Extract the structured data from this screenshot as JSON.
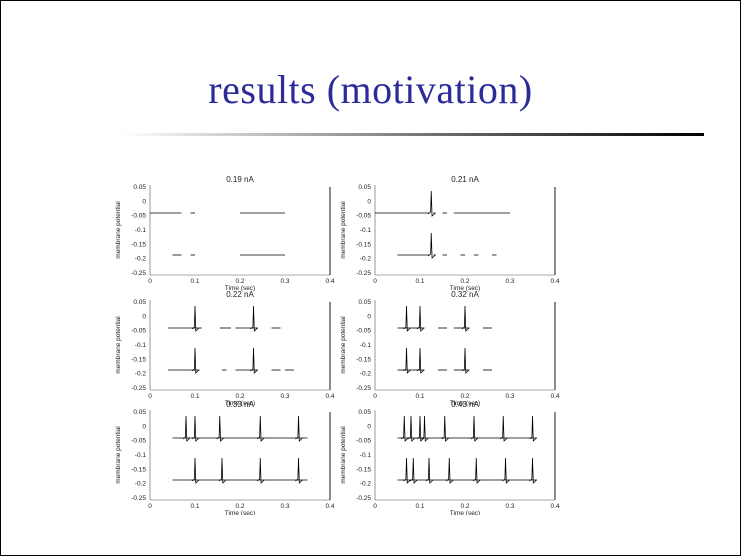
{
  "slide": {
    "title": "results (motivation)",
    "title_color": "#2b2b9a",
    "rule_color": "#000000"
  },
  "chart_data": [
    {
      "type": "line",
      "title": "0.19 nA",
      "xlabel": "Time (sec)",
      "ylabel": "membrane potential",
      "xlim": [
        0,
        0.4
      ],
      "yticks": [
        "0.05",
        "0",
        "-0.05",
        "-0.1",
        "-0.15",
        "-0.2",
        "-0.25"
      ],
      "xticks": [
        "0",
        "0.1",
        "0.2",
        "0.3",
        "0.4"
      ],
      "series": [
        {
          "spikes": [],
          "segments": [
            [
              0,
              0.07
            ],
            [
              0.09,
              0.1
            ],
            [
              0.2,
              0.3
            ]
          ]
        },
        {
          "spikes": [],
          "segments": [
            [
              0.05,
              0.07
            ],
            [
              0.09,
              0.1
            ],
            [
              0.2,
              0.3
            ]
          ]
        }
      ]
    },
    {
      "type": "line",
      "title": "0.21 nA",
      "xlabel": "Time (sec)",
      "ylabel": "membrane potential",
      "xlim": [
        0,
        0.4
      ],
      "yticks": [
        "0.05",
        "0",
        "-0.05",
        "-0.1",
        "-0.15",
        "-0.2",
        "-0.25"
      ],
      "xticks": [
        "0",
        "0.1",
        "0.2",
        "0.3",
        "0.4"
      ],
      "series": [
        {
          "spikes": [
            0.125
          ],
          "segments": [
            [
              0,
              0.12
            ],
            [
              0.13,
              0.135
            ],
            [
              0.15,
              0.16
            ],
            [
              0.175,
              0.3
            ]
          ]
        },
        {
          "spikes": [
            0.125
          ],
          "segments": [
            [
              0.05,
              0.12
            ],
            [
              0.13,
              0.135
            ],
            [
              0.15,
              0.16
            ],
            [
              0.19,
              0.2
            ],
            [
              0.22,
              0.23
            ],
            [
              0.26,
              0.27
            ]
          ]
        }
      ]
    },
    {
      "type": "line",
      "title": "0.22 nA",
      "xlabel": "Time (sec)",
      "ylabel": "membrane potential",
      "xlim": [
        0,
        0.4
      ],
      "yticks": [
        "0.05",
        "0",
        "-0.05",
        "-0.1",
        "-0.15",
        "-0.2",
        "-0.25"
      ],
      "xticks": [
        "0",
        "0.1",
        "0.2",
        "0.3",
        "0.4"
      ],
      "series": [
        {
          "spikes": [
            0.1,
            0.23
          ],
          "segments": [
            [
              0.04,
              0.1
            ],
            [
              0.1,
              0.115
            ],
            [
              0.155,
              0.18
            ],
            [
              0.19,
              0.23
            ],
            [
              0.23,
              0.24
            ],
            [
              0.27,
              0.29
            ]
          ]
        },
        {
          "spikes": [
            0.1,
            0.23
          ],
          "segments": [
            [
              0.04,
              0.1
            ],
            [
              0.1,
              0.11
            ],
            [
              0.16,
              0.17
            ],
            [
              0.19,
              0.23
            ],
            [
              0.23,
              0.24
            ],
            [
              0.27,
              0.29
            ],
            [
              0.3,
              0.32
            ]
          ]
        }
      ]
    },
    {
      "type": "line",
      "title": "0.32 nA",
      "xlabel": "Time (sec)",
      "ylabel": "membrane potential",
      "xlim": [
        0,
        0.4
      ],
      "yticks": [
        "0.05",
        "0",
        "-0.05",
        "-0.1",
        "-0.15",
        "-0.2",
        "-0.25"
      ],
      "xticks": [
        "0",
        "0.1",
        "0.2",
        "0.3",
        "0.4"
      ],
      "series": [
        {
          "spikes": [
            0.07,
            0.1,
            0.2
          ],
          "segments": [
            [
              0.05,
              0.07
            ],
            [
              0.07,
              0.1
            ],
            [
              0.1,
              0.11
            ],
            [
              0.14,
              0.16
            ],
            [
              0.175,
              0.2
            ],
            [
              0.2,
              0.21
            ],
            [
              0.24,
              0.26
            ]
          ]
        },
        {
          "spikes": [
            0.07,
            0.1,
            0.2
          ],
          "segments": [
            [
              0.05,
              0.07
            ],
            [
              0.07,
              0.1
            ],
            [
              0.1,
              0.11
            ],
            [
              0.14,
              0.16
            ],
            [
              0.175,
              0.2
            ],
            [
              0.2,
              0.21
            ],
            [
              0.24,
              0.26
            ]
          ]
        }
      ]
    },
    {
      "type": "line",
      "title": "0.33 nA",
      "xlabel": "Time (sec)",
      "ylabel": "membrane potential",
      "xlim": [
        0,
        0.4
      ],
      "yticks": [
        "0.05",
        "0",
        "-0.05",
        "-0.1",
        "-0.15",
        "-0.2",
        "-0.25"
      ],
      "xticks": [
        "0",
        "0.1",
        "0.2",
        "0.3",
        "0.4"
      ],
      "series": [
        {
          "spikes": [
            0.08,
            0.1,
            0.155,
            0.245,
            0.33
          ],
          "segments": [
            [
              0.05,
              0.35
            ]
          ]
        },
        {
          "spikes": [
            0.1,
            0.16,
            0.245,
            0.33
          ],
          "segments": [
            [
              0.05,
              0.35
            ]
          ]
        }
      ]
    },
    {
      "type": "line",
      "title": "0.43 nA",
      "xlabel": "Time (sec)",
      "ylabel": "membrane potential",
      "xlim": [
        0,
        0.4
      ],
      "yticks": [
        "0.05",
        "0",
        "-0.05",
        "-0.1",
        "-0.15",
        "-0.2",
        "-0.25"
      ],
      "xticks": [
        "0",
        "0.1",
        "0.2",
        "0.3",
        "0.4"
      ],
      "series": [
        {
          "spikes": [
            0.065,
            0.08,
            0.1,
            0.11,
            0.155,
            0.22,
            0.285,
            0.35
          ],
          "segments": [
            [
              0.05,
              0.36
            ]
          ]
        },
        {
          "spikes": [
            0.07,
            0.085,
            0.12,
            0.165,
            0.225,
            0.29,
            0.35
          ],
          "segments": [
            [
              0.05,
              0.36
            ]
          ]
        }
      ]
    }
  ]
}
